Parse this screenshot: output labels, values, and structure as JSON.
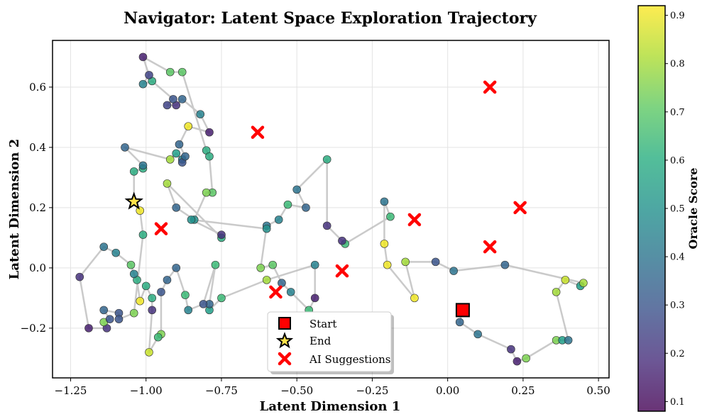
{
  "chart_data": {
    "type": "scatter",
    "title": "Navigator: Latent Space Exploration Trajectory",
    "xlabel": "Latent Dimension 1",
    "ylabel": "Latent Dimension 2",
    "xlim": [
      -1.31,
      0.535
    ],
    "ylim": [
      -0.365,
      0.755
    ],
    "xticks": [
      -1.25,
      -1.0,
      -0.75,
      -0.5,
      -0.25,
      0.0,
      0.25,
      0.5
    ],
    "xtick_labels": [
      "−1.25",
      "−1.00",
      "−0.75",
      "−0.50",
      "−0.25",
      "0.00",
      "0.25",
      "0.50"
    ],
    "yticks": [
      -0.2,
      0.0,
      0.2,
      0.4,
      0.6
    ],
    "ytick_labels": [
      "−0.2",
      "0.0",
      "0.2",
      "0.4",
      "0.6"
    ],
    "grid": true,
    "legend_position": "lower-center",
    "trajectory": {
      "name": "Trajectory",
      "color": "#b8b8b8",
      "points": [
        [
          0.05,
          -0.14,
          0.9
        ],
        [
          0.04,
          -0.18,
          0.35
        ],
        [
          0.1,
          -0.22,
          0.4
        ],
        [
          0.21,
          -0.27,
          0.2
        ],
        [
          0.23,
          -0.31,
          0.15
        ],
        [
          0.26,
          -0.3,
          0.75
        ],
        [
          0.36,
          -0.24,
          0.75
        ],
        [
          0.38,
          -0.24,
          0.55
        ],
        [
          0.4,
          -0.24,
          0.4
        ],
        [
          0.36,
          -0.08,
          0.8
        ],
        [
          0.39,
          -0.04,
          0.85
        ],
        [
          0.44,
          -0.06,
          0.55
        ],
        [
          0.45,
          -0.05,
          0.8
        ],
        [
          0.19,
          0.01,
          0.35
        ],
        [
          0.02,
          -0.01,
          0.4
        ],
        [
          -0.04,
          0.02,
          0.3
        ],
        [
          -0.14,
          0.02,
          0.8
        ],
        [
          -0.11,
          -0.1,
          0.9
        ],
        [
          -0.2,
          0.01,
          0.9
        ],
        [
          -0.21,
          0.08,
          0.9
        ],
        [
          -0.21,
          0.22,
          0.4
        ],
        [
          -0.19,
          0.17,
          0.65
        ],
        [
          -0.34,
          0.08,
          0.65
        ],
        [
          -0.35,
          0.09,
          0.2
        ],
        [
          -0.4,
          0.14,
          0.2
        ],
        [
          -0.4,
          0.36,
          0.6
        ],
        [
          -0.5,
          0.26,
          0.4
        ],
        [
          -0.47,
          0.2,
          0.35
        ],
        [
          -0.53,
          0.21,
          0.65
        ],
        [
          -0.56,
          0.16,
          0.45
        ],
        [
          -0.6,
          0.14,
          0.4
        ],
        [
          -0.62,
          0.0,
          0.75
        ],
        [
          -0.58,
          0.01,
          0.7
        ],
        [
          -0.55,
          -0.05,
          0.35
        ],
        [
          -0.52,
          -0.08,
          0.45
        ],
        [
          -0.46,
          -0.14,
          0.65
        ],
        [
          -0.44,
          -0.1,
          0.15
        ],
        [
          -0.44,
          0.01,
          0.45
        ],
        [
          -0.6,
          -0.04,
          0.8
        ],
        [
          -0.75,
          -0.1,
          0.65
        ],
        [
          -0.79,
          -0.14,
          0.55
        ],
        [
          -0.79,
          -0.12,
          0.35
        ],
        [
          -0.77,
          0.01,
          0.65
        ],
        [
          -0.81,
          -0.12,
          0.3
        ],
        [
          -0.86,
          -0.14,
          0.45
        ],
        [
          -0.87,
          -0.09,
          0.65
        ],
        [
          -0.9,
          0.0,
          0.35
        ],
        [
          -0.93,
          -0.04,
          0.35
        ],
        [
          -0.95,
          -0.08,
          0.3
        ],
        [
          -0.95,
          -0.22,
          0.75
        ],
        [
          -0.96,
          -0.23,
          0.65
        ],
        [
          -0.99,
          -0.28,
          0.85
        ],
        [
          -0.98,
          -0.14,
          0.2
        ],
        [
          -0.98,
          -0.1,
          0.6
        ],
        [
          -1.0,
          -0.06,
          0.6
        ],
        [
          -1.02,
          -0.11,
          0.9
        ],
        [
          -1.03,
          -0.04,
          0.6
        ],
        [
          -1.04,
          -0.02,
          0.45
        ],
        [
          -1.05,
          0.01,
          0.7
        ],
        [
          -1.1,
          0.05,
          0.45
        ],
        [
          -1.14,
          0.07,
          0.4
        ],
        [
          -1.22,
          -0.03,
          0.2
        ],
        [
          -1.19,
          -0.2,
          0.15
        ],
        [
          -1.13,
          -0.2,
          0.2
        ],
        [
          -1.14,
          -0.18,
          0.75
        ],
        [
          -1.12,
          -0.17,
          0.3
        ],
        [
          -1.14,
          -0.14,
          0.35
        ],
        [
          -1.09,
          -0.15,
          0.3
        ],
        [
          -1.09,
          -0.17,
          0.3
        ],
        [
          -1.04,
          -0.15,
          0.75
        ],
        [
          -1.01,
          0.11,
          0.6
        ],
        [
          -1.02,
          0.19,
          0.9
        ],
        [
          -1.04,
          0.22,
          0.9
        ],
        [
          -1.04,
          0.32,
          0.6
        ],
        [
          -1.01,
          0.33,
          0.6
        ],
        [
          -1.01,
          0.34,
          0.4
        ],
        [
          -1.07,
          0.4,
          0.35
        ],
        [
          -0.92,
          0.36,
          0.8
        ],
        [
          -0.9,
          0.38,
          0.55
        ],
        [
          -0.88,
          0.36,
          0.45
        ],
        [
          -0.88,
          0.35,
          0.3
        ],
        [
          -0.87,
          0.37,
          0.35
        ],
        [
          -0.89,
          0.41,
          0.35
        ],
        [
          -0.86,
          0.47,
          0.9
        ],
        [
          -0.79,
          0.45,
          0.15
        ],
        [
          -0.82,
          0.51,
          0.45
        ],
        [
          -0.88,
          0.56,
          0.35
        ],
        [
          -0.9,
          0.54,
          0.2
        ],
        [
          -0.93,
          0.54,
          0.25
        ],
        [
          -0.91,
          0.56,
          0.3
        ],
        [
          -0.98,
          0.62,
          0.6
        ],
        [
          -1.01,
          0.61,
          0.45
        ],
        [
          -0.99,
          0.64,
          0.25
        ],
        [
          -1.01,
          0.7,
          0.15
        ],
        [
          -0.92,
          0.65,
          0.7
        ],
        [
          -0.88,
          0.65,
          0.7
        ],
        [
          -0.8,
          0.39,
          0.6
        ],
        [
          -0.79,
          0.37,
          0.6
        ],
        [
          -0.78,
          0.25,
          0.7
        ],
        [
          -0.8,
          0.25,
          0.75
        ],
        [
          -0.84,
          0.16,
          0.5
        ],
        [
          -0.9,
          0.2,
          0.35
        ],
        [
          -0.93,
          0.28,
          0.8
        ],
        [
          -0.75,
          0.1,
          0.6
        ],
        [
          -0.75,
          0.11,
          0.2
        ],
        [
          -0.85,
          0.16,
          0.5
        ],
        [
          -0.6,
          0.13,
          0.5
        ]
      ]
    },
    "start": {
      "label": "Start",
      "x": 0.05,
      "y": -0.14,
      "color": "#ff0000"
    },
    "end": {
      "label": "End",
      "x": -1.04,
      "y": 0.22,
      "color": "#ffe34a"
    },
    "ai_suggestions": {
      "label": "AI Suggestions",
      "color": "#ff0000",
      "points": [
        [
          0.14,
          0.6
        ],
        [
          -0.63,
          0.45
        ],
        [
          0.24,
          0.2
        ],
        [
          -0.11,
          0.16
        ],
        [
          -0.95,
          0.13
        ],
        [
          0.14,
          0.07
        ],
        [
          -0.35,
          -0.01
        ],
        [
          -0.57,
          -0.08
        ]
      ]
    },
    "colorbar": {
      "label": "Oracle Score",
      "range": [
        0.08,
        0.92
      ],
      "ticks": [
        0.1,
        0.2,
        0.3,
        0.4,
        0.5,
        0.6,
        0.7,
        0.8,
        0.9
      ],
      "tick_labels": [
        "0.1",
        "0.2",
        "0.3",
        "0.4",
        "0.5",
        "0.6",
        "0.7",
        "0.8",
        "0.9"
      ],
      "colormap": "viridis"
    }
  }
}
